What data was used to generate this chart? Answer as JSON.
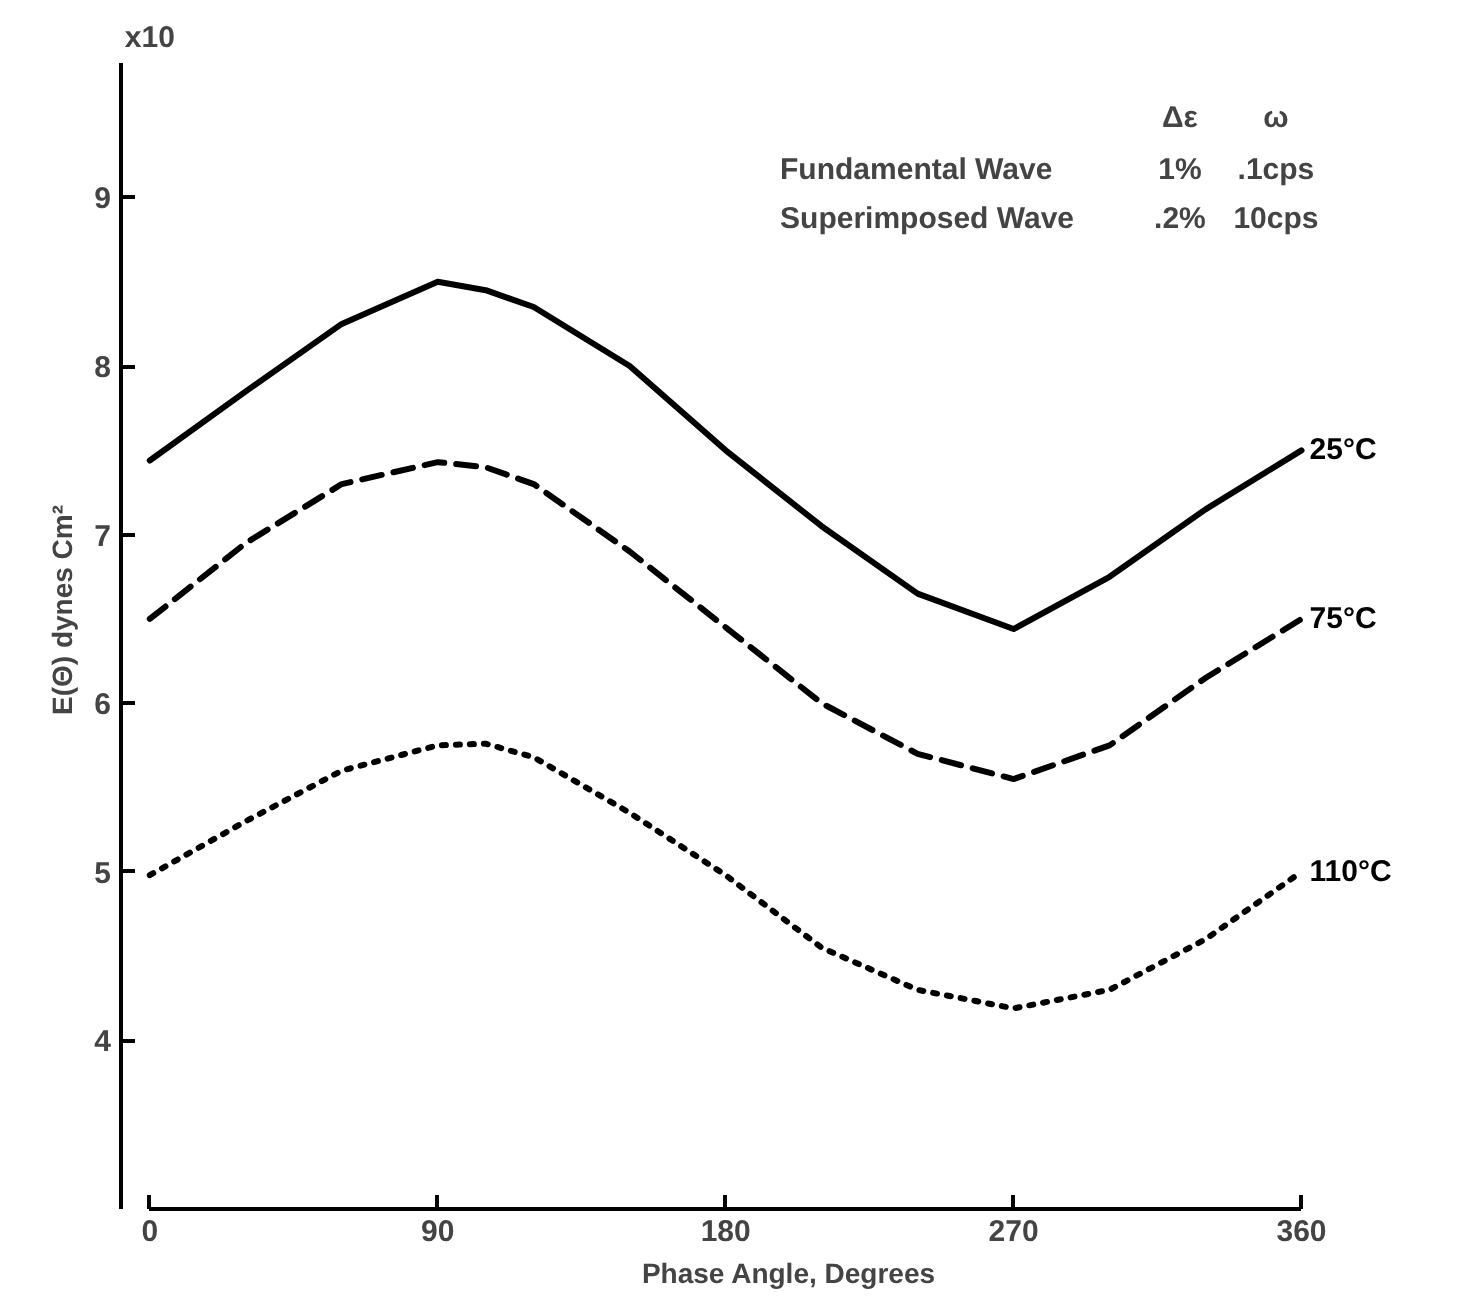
{
  "chart_data": {
    "type": "line",
    "xlabel": "Phase Angle, Degrees",
    "ylabel": "E(Θ) dynes Cm²",
    "x": [
      0,
      30,
      60,
      90,
      105,
      120,
      150,
      180,
      210,
      240,
      270,
      300,
      330,
      360
    ],
    "series": [
      {
        "name": "25°C",
        "color": "#000000",
        "line_style": "solid",
        "values": [
          7.44,
          7.85,
          8.25,
          8.5,
          8.45,
          8.35,
          8.0,
          7.5,
          7.05,
          6.65,
          6.44,
          6.75,
          7.15,
          7.5
        ]
      },
      {
        "name": "75°C",
        "color": "#000000",
        "line_style": "dashed",
        "values": [
          6.5,
          6.95,
          7.3,
          7.43,
          7.4,
          7.3,
          6.9,
          6.45,
          6.0,
          5.7,
          5.55,
          5.75,
          6.15,
          6.5
        ]
      },
      {
        "name": "110°C",
        "color": "#000000",
        "line_style": "dotted",
        "values": [
          4.98,
          5.3,
          5.6,
          5.75,
          5.76,
          5.68,
          5.35,
          4.98,
          4.55,
          4.3,
          4.19,
          4.3,
          4.6,
          5.0
        ]
      }
    ],
    "xlim": [
      0,
      360
    ],
    "ylim": [
      3,
      9.8
    ],
    "xticks": [
      0,
      90,
      180,
      270,
      360
    ],
    "yticks": [
      4,
      5,
      6,
      7,
      8,
      9
    ],
    "grid": false,
    "marker": "none",
    "annotations": [
      "x10",
      "Δε",
      "ω",
      "Fundamental Wave",
      "1%",
      ".1cps",
      "Superimposed Wave",
      ".2%",
      "10cps"
    ]
  }
}
